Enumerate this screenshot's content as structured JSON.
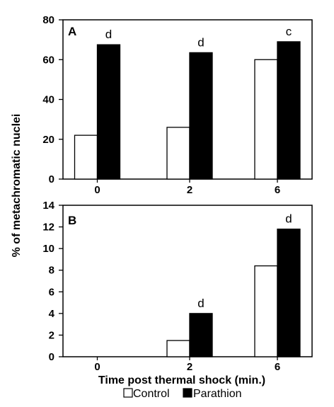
{
  "ylabel": "% of metachromatic nuclei",
  "xlabel": "Time post thermal shock (min.)",
  "legend": [
    {
      "name": "Control",
      "color": "#ffffff"
    },
    {
      "name": "Parathion",
      "color": "#000000"
    }
  ],
  "chart_data": [
    {
      "type": "bar",
      "panel": "A",
      "categories": [
        "0",
        "2",
        "6"
      ],
      "series": [
        {
          "name": "Control",
          "values": [
            22,
            26,
            60
          ]
        },
        {
          "name": "Parathion",
          "values": [
            67.5,
            63.5,
            69
          ]
        }
      ],
      "annotations": [
        "d",
        "d",
        "c"
      ],
      "ylim": [
        0,
        80
      ],
      "yticks": [
        "0",
        "20",
        "40",
        "60",
        "80"
      ]
    },
    {
      "type": "bar",
      "panel": "B",
      "categories": [
        "0",
        "2",
        "6"
      ],
      "series": [
        {
          "name": "Control",
          "values": [
            0,
            1.5,
            8.4
          ]
        },
        {
          "name": "Parathion",
          "values": [
            0,
            4.0,
            11.8
          ]
        }
      ],
      "annotations": [
        "",
        "d",
        "d"
      ],
      "ylim": [
        0,
        14
      ],
      "yticks": [
        "0",
        "2",
        "4",
        "6",
        "8",
        "10",
        "12",
        "14"
      ]
    }
  ]
}
